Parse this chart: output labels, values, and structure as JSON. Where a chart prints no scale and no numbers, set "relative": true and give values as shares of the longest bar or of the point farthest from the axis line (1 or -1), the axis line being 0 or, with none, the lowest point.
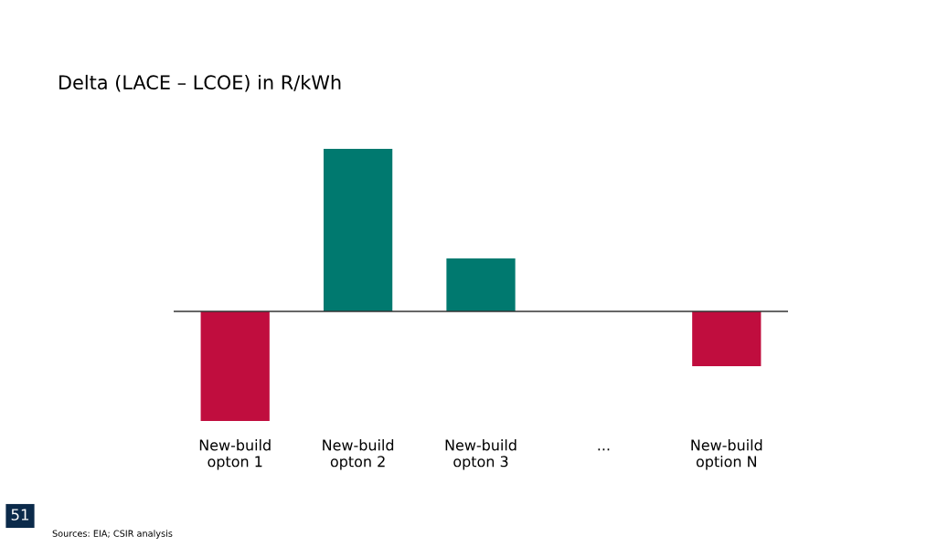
{
  "chart_data": {
    "type": "bar",
    "title": "Delta (LACE – LCOE) in R/kWh",
    "categories": [
      "New-build\nopton 1",
      "New-build\nopton 2",
      "New-build\nopton 3",
      "...",
      "New-build\noption N"
    ],
    "values": [
      -0.674,
      1,
      0.326,
      null,
      -0.337
    ],
    "colors": [
      "#c00d3e",
      "#00796f",
      "#00796f",
      "#00796f",
      "#c00d3e"
    ],
    "relative": true,
    "grid": false,
    "legend": false,
    "annotations": [
      "51",
      "Sources: EIA; CSIR analysis"
    ]
  }
}
